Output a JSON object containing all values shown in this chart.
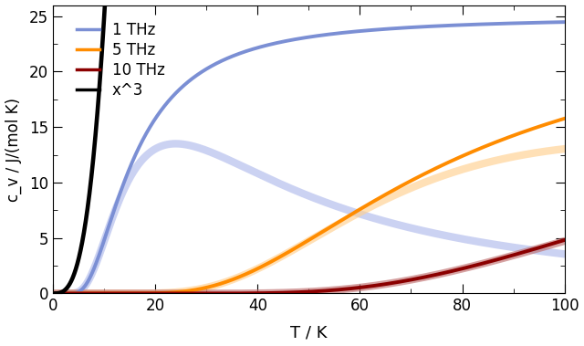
{
  "title": "",
  "xlabel": "T / K",
  "ylabel": "c_v / J/(mol K)",
  "xlim": [
    0,
    100
  ],
  "ylim": [
    0,
    26
  ],
  "yticks": [
    0,
    5,
    10,
    15,
    20,
    25
  ],
  "xticks": [
    0,
    20,
    40,
    60,
    80,
    100
  ],
  "freqs_THz": [
    1,
    5,
    10
  ],
  "colors": [
    "#7b8fd4",
    "#ff8c00",
    "#8b0000"
  ],
  "colors_light": [
    "#b0baec",
    "#ffd090",
    "#c07070"
  ],
  "x3_color": "#000000",
  "R3": 24.943,
  "legend_labels": [
    "1 THz",
    "5 THz",
    "10 THz",
    "x^3"
  ],
  "background_color": "#ffffff",
  "linewidth_main": 2.8,
  "linewidth_light": 6.0,
  "alpha_light": 0.65,
  "figsize": [
    6.4,
    3.79
  ],
  "dpi": 100,
  "x3_A_num": 25.0,
  "x3_A_denom_T": 10.0
}
